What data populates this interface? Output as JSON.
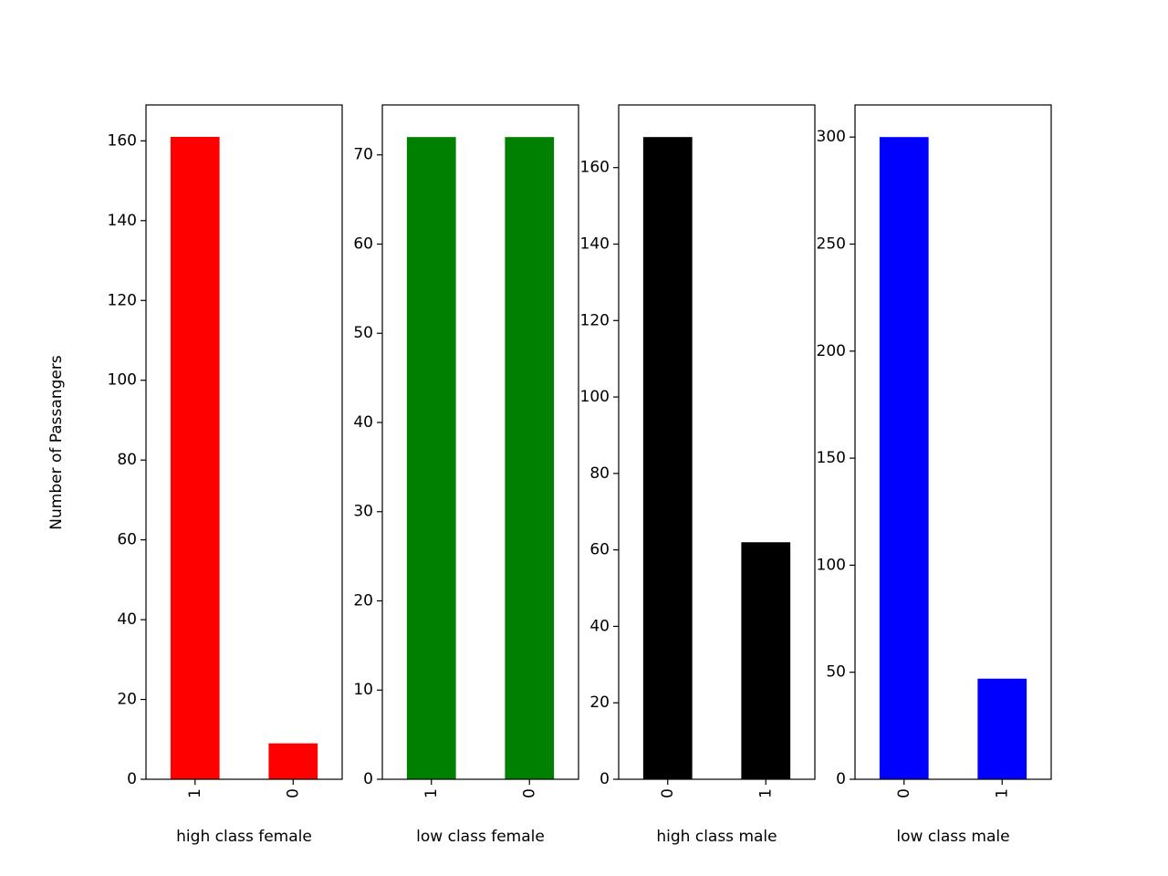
{
  "figure": {
    "ylabel": "Number of Passangers"
  },
  "chart_data": [
    {
      "type": "bar",
      "xlabel": "high class female",
      "categories": [
        "1",
        "0"
      ],
      "values": [
        161,
        9
      ],
      "ylim": [
        0,
        169
      ],
      "yticks": [
        0,
        20,
        40,
        60,
        80,
        100,
        120,
        140,
        160
      ],
      "color": "#ff0000"
    },
    {
      "type": "bar",
      "xlabel": "low class female",
      "categories": [
        "1",
        "0"
      ],
      "values": [
        72,
        72
      ],
      "ylim": [
        0,
        75.6
      ],
      "yticks": [
        0,
        10,
        20,
        30,
        40,
        50,
        60,
        70
      ],
      "color": "#008000"
    },
    {
      "type": "bar",
      "xlabel": "high class male",
      "categories": [
        "0",
        "1"
      ],
      "values": [
        168,
        62
      ],
      "ylim": [
        0,
        176.4
      ],
      "yticks": [
        0,
        20,
        40,
        60,
        80,
        100,
        120,
        140,
        160
      ],
      "color": "#000000"
    },
    {
      "type": "bar",
      "xlabel": "low class male",
      "categories": [
        "0",
        "1"
      ],
      "values": [
        300,
        47
      ],
      "ylim": [
        0,
        315
      ],
      "yticks": [
        0,
        50,
        100,
        150,
        200,
        250,
        300
      ],
      "color": "#0000ff"
    }
  ]
}
